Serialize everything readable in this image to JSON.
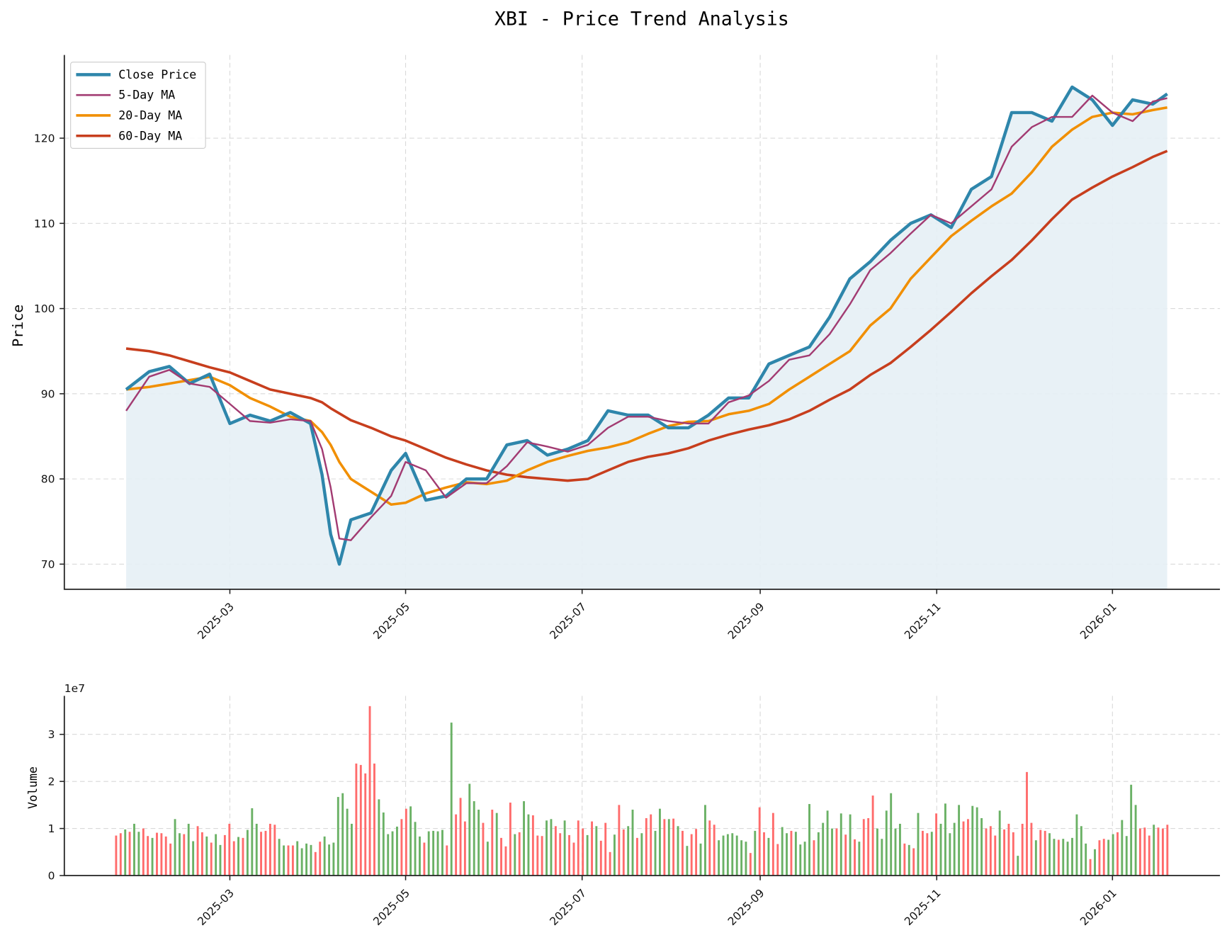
{
  "chart_data": [
    {
      "type": "line",
      "title": "XBI - Price Trend Analysis",
      "xlabel": "",
      "ylabel": "Price",
      "ylim": [
        67,
        124
      ],
      "yticks": [
        70,
        80,
        90,
        100,
        110,
        120
      ],
      "xticks": [
        "2025-03",
        "2025-05",
        "2025-07",
        "2025-09",
        "2025-11",
        "2026-01"
      ],
      "grid": true,
      "legend_position": "upper left",
      "legend": [
        "Close Price",
        "5-Day MA",
        "20-Day MA",
        "60-Day MA"
      ],
      "colors": {
        "close": "#2e86ab",
        "ma5": "#a23b72",
        "ma20": "#f18f01",
        "ma60": "#c73e1d",
        "fill": "#e6f0f5"
      },
      "x": [
        "2025-01-24",
        "2025-02-01",
        "2025-02-08",
        "2025-02-15",
        "2025-02-22",
        "2025-03-01",
        "2025-03-08",
        "2025-03-15",
        "2025-03-22",
        "2025-03-29",
        "2025-04-02",
        "2025-04-05",
        "2025-04-08",
        "2025-04-12",
        "2025-04-19",
        "2025-04-26",
        "2025-05-01",
        "2025-05-08",
        "2025-05-15",
        "2025-05-22",
        "2025-05-29",
        "2025-06-05",
        "2025-06-12",
        "2025-06-19",
        "2025-06-26",
        "2025-07-03",
        "2025-07-10",
        "2025-07-17",
        "2025-07-24",
        "2025-07-31",
        "2025-08-07",
        "2025-08-14",
        "2025-08-21",
        "2025-08-28",
        "2025-09-04",
        "2025-09-11",
        "2025-09-18",
        "2025-09-25",
        "2025-10-02",
        "2025-10-09",
        "2025-10-16",
        "2025-10-23",
        "2025-10-30",
        "2025-11-06",
        "2025-11-13",
        "2025-11-20",
        "2025-11-27",
        "2025-12-04",
        "2025-12-11",
        "2025-12-18",
        "2025-12-25",
        "2026-01-01",
        "2026-01-08",
        "2026-01-15",
        "2026-01-20"
      ],
      "series": [
        {
          "name": "Close Price",
          "values": [
            90.5,
            92.6,
            93.2,
            91.2,
            92.3,
            86.5,
            87.5,
            86.8,
            87.8,
            86.5,
            80.5,
            73.5,
            70.0,
            75.2,
            76.0,
            81.0,
            83.0,
            77.5,
            78.0,
            80.0,
            80.0,
            84.0,
            84.5,
            82.8,
            83.5,
            84.5,
            88.0,
            87.5,
            87.5,
            86.0,
            86.0,
            87.5,
            89.5,
            89.5,
            93.5,
            94.5,
            95.5,
            99.0,
            103.5,
            105.5,
            108.0,
            110.0,
            111.0,
            109.5,
            114.0,
            115.5,
            123.0,
            123.0,
            122.0,
            126.0,
            124.5,
            121.5,
            124.5,
            124.0,
            125.2
          ]
        },
        {
          "name": "5-Day MA",
          "values": [
            88.0,
            92.0,
            92.8,
            91.2,
            90.8,
            88.8,
            86.8,
            86.6,
            87.0,
            86.8,
            83.5,
            79.0,
            73.0,
            72.8,
            75.5,
            78.0,
            82.0,
            81.0,
            77.8,
            79.5,
            79.5,
            81.5,
            84.3,
            83.8,
            83.2,
            84.0,
            86.0,
            87.3,
            87.3,
            86.8,
            86.5,
            86.5,
            89.0,
            89.8,
            91.5,
            94.0,
            94.5,
            97.0,
            100.5,
            104.5,
            106.5,
            108.8,
            111.0,
            110.0,
            112.0,
            114.0,
            119.0,
            121.3,
            122.5,
            122.5,
            125.0,
            123.0,
            122.0,
            124.3,
            124.7
          ]
        },
        {
          "name": "20-Day MA",
          "values": [
            90.5,
            90.8,
            91.2,
            91.6,
            92.0,
            91.0,
            89.5,
            88.5,
            87.3,
            86.8,
            85.5,
            84.0,
            82.0,
            80.0,
            78.5,
            77.0,
            77.2,
            78.3,
            79.0,
            79.6,
            79.4,
            79.8,
            81.0,
            82.0,
            82.7,
            83.3,
            83.7,
            84.3,
            85.3,
            86.2,
            86.7,
            86.8,
            87.6,
            88.0,
            88.8,
            90.5,
            92.0,
            93.5,
            95.0,
            98.0,
            100.0,
            103.5,
            106.0,
            108.5,
            110.3,
            112.0,
            113.5,
            116.0,
            119.0,
            121.0,
            122.5,
            123.0,
            122.8,
            123.3,
            123.6
          ]
        },
        {
          "name": "60-Day MA",
          "values": [
            95.3,
            95.0,
            94.5,
            93.8,
            93.1,
            92.5,
            91.5,
            90.5,
            90.0,
            89.5,
            89.0,
            88.3,
            87.7,
            86.9,
            86.0,
            85.0,
            84.5,
            83.5,
            82.5,
            81.7,
            81.0,
            80.5,
            80.2,
            80.0,
            79.8,
            80.0,
            81.0,
            82.0,
            82.6,
            83.0,
            83.6,
            84.5,
            85.2,
            85.8,
            86.3,
            87.0,
            88.0,
            89.3,
            90.5,
            92.2,
            93.6,
            95.5,
            97.5,
            99.6,
            101.8,
            103.8,
            105.7,
            108.0,
            110.5,
            112.8,
            114.2,
            115.5,
            116.6,
            117.8,
            118.5
          ]
        }
      ]
    },
    {
      "type": "bar",
      "title": "",
      "xlabel": "",
      "ylabel": "Volume",
      "y_offset_label": "1e7",
      "ylim": [
        0,
        3.8
      ],
      "yticks": [
        0,
        1,
        2,
        3
      ],
      "xticks": [
        "2025-03",
        "2025-05",
        "2025-07",
        "2025-09",
        "2025-11",
        "2026-01"
      ],
      "grid": true,
      "colors": {
        "up": "#6ab165",
        "down": "#ff6b6b"
      },
      "units": "1e7 shares",
      "values": [
        0.85,
        0.9,
        0.98,
        0.93,
        1.1,
        0.93,
        1.0,
        0.84,
        0.8,
        0.91,
        0.9,
        0.83,
        0.68,
        1.2,
        0.9,
        0.88,
        1.1,
        0.73,
        1.05,
        0.92,
        0.83,
        0.7,
        0.88,
        0.65,
        0.86,
        1.1,
        0.73,
        0.82,
        0.8,
        0.97,
        1.43,
        1.1,
        0.93,
        0.95,
        1.1,
        1.08,
        0.78,
        0.64,
        0.64,
        0.64,
        0.73,
        0.58,
        0.68,
        0.65,
        0.5,
        0.72,
        0.83,
        0.66,
        0.7,
        1.67,
        1.75,
        1.42,
        1.1,
        2.38,
        2.35,
        2.17,
        3.6,
        2.38,
        1.62,
        1.34,
        0.88,
        0.94,
        1.04,
        1.2,
        1.42,
        1.47,
        1.14,
        0.83,
        0.7,
        0.94,
        0.95,
        0.94,
        0.97,
        0.64,
        3.25,
        1.3,
        1.65,
        1.15,
        1.95,
        1.58,
        1.4,
        1.12,
        0.72,
        1.4,
        1.33,
        0.8,
        0.62,
        1.55,
        0.88,
        0.92,
        1.58,
        1.3,
        1.28,
        0.85,
        0.84,
        1.17,
        1.2,
        1.05,
        0.9,
        1.17,
        0.86,
        0.7,
        1.17,
        1.0,
        0.86,
        1.15,
        1.05,
        0.74,
        1.12,
        0.5,
        0.87,
        1.5,
        0.98,
        1.05,
        1.4,
        0.8,
        0.9,
        1.22,
        1.3,
        0.95,
        1.42,
        1.2,
        1.2,
        1.21,
        1.05,
        0.95,
        0.63,
        0.88,
        0.99,
        0.68,
        1.5,
        1.17,
        1.08,
        0.75,
        0.85,
        0.88,
        0.9,
        0.85,
        0.75,
        0.72,
        0.48,
        0.95,
        1.45,
        0.92,
        0.8,
        1.33,
        0.67,
        1.03,
        0.9,
        0.95,
        0.93,
        0.66,
        0.72,
        1.52,
        0.75,
        0.92,
        1.12,
        1.38,
        1.0,
        1.0,
        1.32,
        0.87,
        1.3,
        0.77,
        0.72,
        1.2,
        1.22,
        1.7,
        1.0,
        0.78,
        1.38,
        1.75,
        1.0,
        1.1,
        0.68,
        0.65,
        0.58,
        1.33,
        0.95,
        0.9,
        0.93,
        1.32,
        1.1,
        1.53,
        0.9,
        1.12,
        1.5,
        1.15,
        1.2,
        1.48,
        1.45,
        1.22,
        1.0,
        1.05,
        0.85,
        1.38,
        0.98,
        1.1,
        0.92,
        0.42,
        1.1,
        2.2,
        1.12,
        0.75,
        0.97,
        0.95,
        0.9,
        0.78,
        0.76,
        0.78,
        0.72,
        0.8,
        1.3,
        1.05,
        0.68,
        0.35,
        0.56,
        0.75,
        0.78,
        0.76,
        0.88,
        0.92,
        1.18,
        0.84,
        1.93,
        1.5,
        1.0,
        1.02,
        0.85,
        1.08,
        1.02,
        1.0,
        1.08
      ],
      "up_flags": "0010110010000110110010110001011100001100111100111111100000111110011101111010001110101000101100011001000010100010011010011010101001100111111101001001101111011110101010001111110101001011111001110001000100010011011111101001101111000100"
    }
  ]
}
